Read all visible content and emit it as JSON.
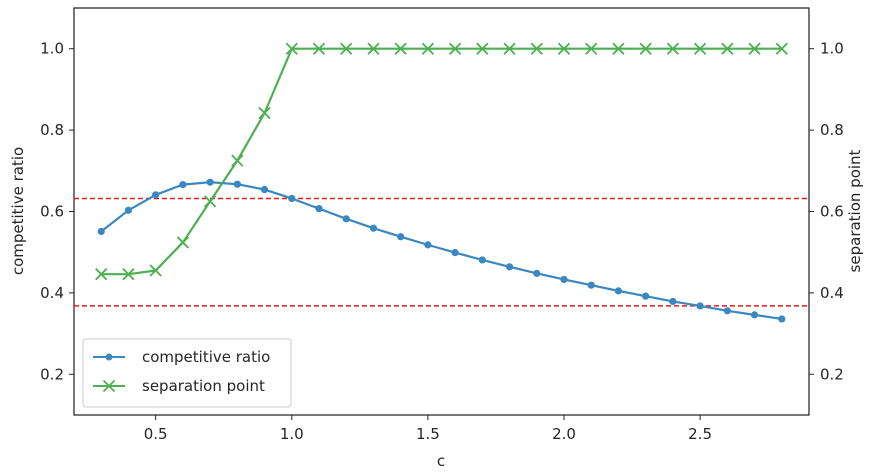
{
  "chart_data": {
    "type": "line",
    "xlabel": "c",
    "ylabel_left": "competitive ratio",
    "ylabel_right": "separation point",
    "xlim": [
      0.2,
      2.9
    ],
    "ylim": [
      0.1,
      1.1
    ],
    "x_ticks": [
      0.5,
      1.0,
      1.5,
      2.0,
      2.5
    ],
    "x_tick_labels": [
      "0.5",
      "1.0",
      "1.5",
      "2.0",
      "2.5"
    ],
    "y_ticks": [
      0.2,
      0.4,
      0.6,
      0.8,
      1.0
    ],
    "y_tick_labels": [
      "0.2",
      "0.4",
      "0.6",
      "0.8",
      "1.0"
    ],
    "grid": false,
    "legend_position": "bottom-left",
    "x": [
      0.3,
      0.4,
      0.5,
      0.6,
      0.7,
      0.8,
      0.9,
      1.0,
      1.1,
      1.2,
      1.3,
      1.4,
      1.5,
      1.6,
      1.7,
      1.8,
      1.9,
      2.0,
      2.1,
      2.2,
      2.3,
      2.4,
      2.5,
      2.6,
      2.7,
      2.8
    ],
    "series": [
      {
        "name": "competitive ratio",
        "color": "#3a87c1",
        "marker": "circle",
        "axis": "left",
        "values": [
          0.551,
          0.603,
          0.641,
          0.666,
          0.672,
          0.667,
          0.654,
          0.632,
          0.607,
          0.582,
          0.559,
          0.538,
          0.518,
          0.499,
          0.481,
          0.464,
          0.448,
          0.433,
          0.419,
          0.405,
          0.392,
          0.379,
          0.368,
          0.356,
          0.346,
          0.336
        ]
      },
      {
        "name": "separation point",
        "color": "#4caf50",
        "marker": "x",
        "axis": "right",
        "values": [
          0.446,
          0.446,
          0.455,
          0.524,
          0.625,
          0.725,
          0.842,
          1.0,
          1.0,
          1.0,
          1.0,
          1.0,
          1.0,
          1.0,
          1.0,
          1.0,
          1.0,
          1.0,
          1.0,
          1.0,
          1.0,
          1.0,
          1.0,
          1.0,
          1.0,
          1.0
        ]
      }
    ],
    "reference_lines": [
      {
        "y": 0.632,
        "color": "#e41a1c",
        "style": "dashed"
      },
      {
        "y": 0.368,
        "color": "#e41a1c",
        "style": "dashed"
      }
    ]
  }
}
